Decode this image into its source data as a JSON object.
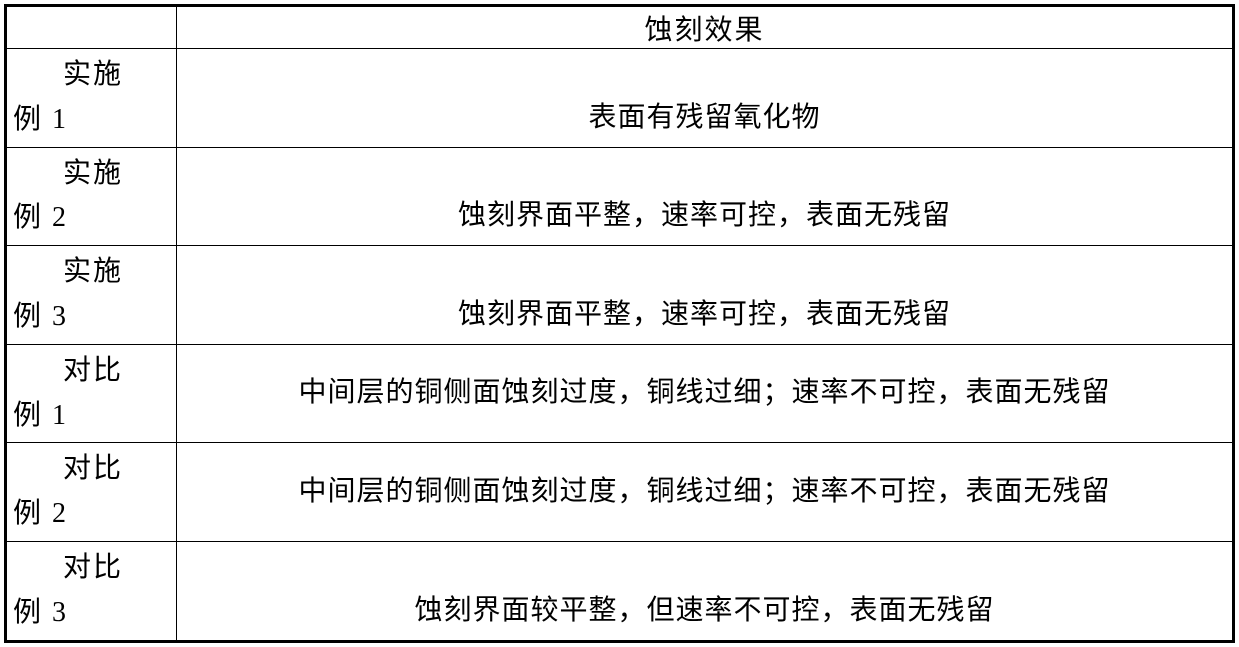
{
  "table": {
    "header": {
      "col1": "",
      "col2": "蚀刻效果"
    },
    "rows": [
      {
        "label_line1": "实施",
        "label_line2": "例 1",
        "effect": "表面有残留氧化物",
        "multiline": false,
        "bottom_align": true
      },
      {
        "label_line1": "实施",
        "label_line2": "例 2",
        "effect": "蚀刻界面平整，速率可控，表面无残留",
        "multiline": false,
        "bottom_align": true
      },
      {
        "label_line1": "实施",
        "label_line2": "例 3",
        "effect": "蚀刻界面平整，速率可控，表面无残留",
        "multiline": false,
        "bottom_align": true
      },
      {
        "label_line1": "对比",
        "label_line2": "例 1",
        "effect": "中间层的铜侧面蚀刻过度，铜线过细；速率不可控，表面无残留",
        "multiline": true,
        "bottom_align": false
      },
      {
        "label_line1": "对比",
        "label_line2": "例 2",
        "effect": "中间层的铜侧面蚀刻过度，铜线过细；速率不可控，表面无残留",
        "multiline": true,
        "bottom_align": false
      },
      {
        "label_line1": "对比",
        "label_line2": "例 3",
        "effect": "蚀刻界面较平整，但速率不可控，表面无残留",
        "multiline": false,
        "bottom_align": true
      }
    ],
    "style": {
      "border_color": "#000000",
      "background_color": "#ffffff",
      "font_size": 28,
      "col_label_width": 170,
      "total_width": 1231
    }
  }
}
